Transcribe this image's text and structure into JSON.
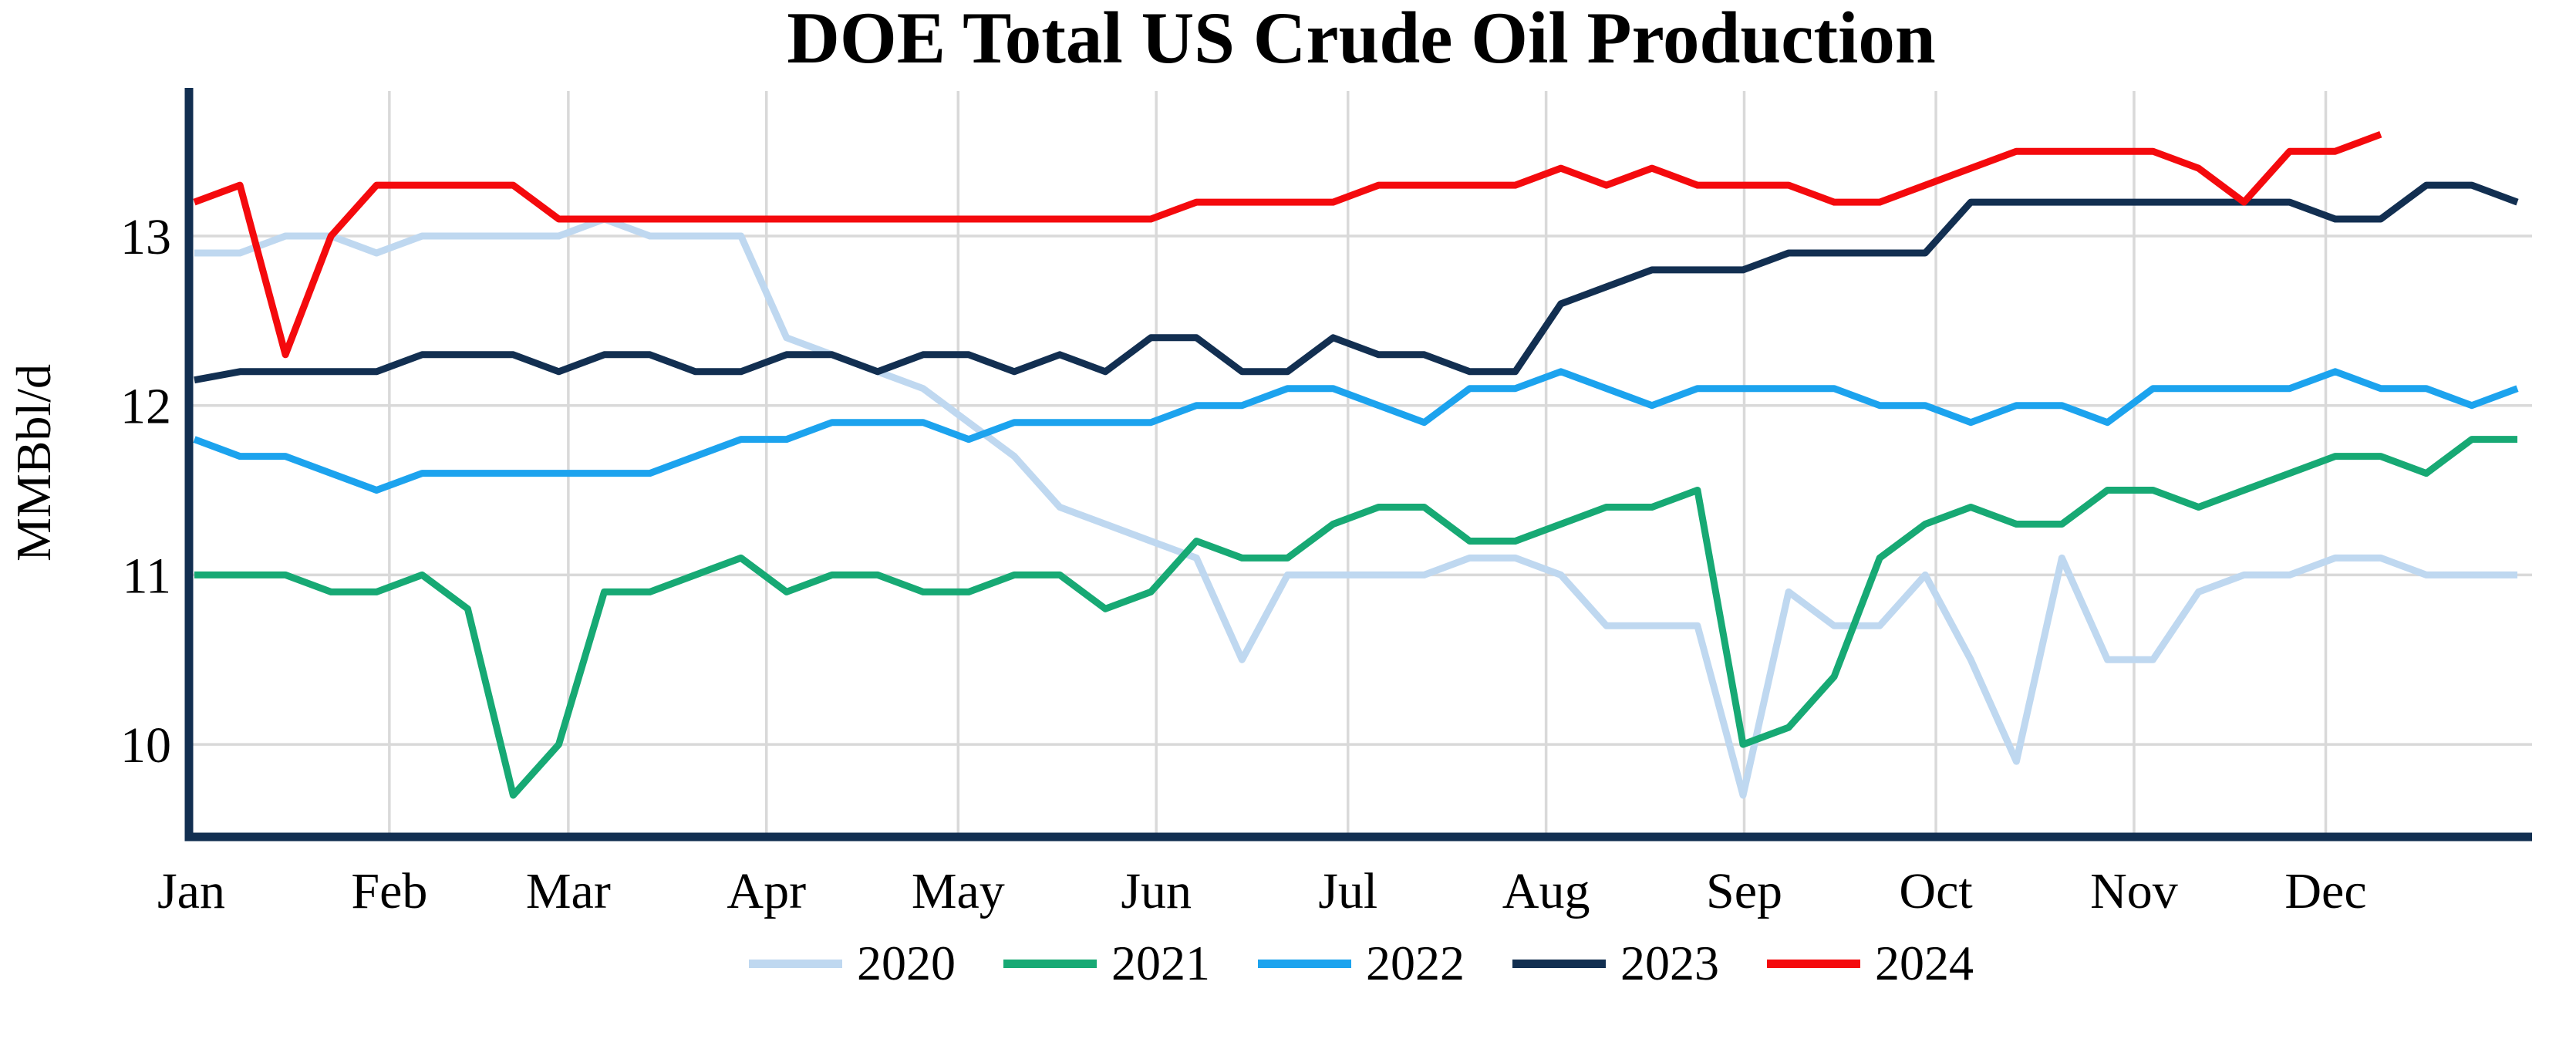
{
  "title": "DOE Total US Crude Oil Production",
  "colors": {
    "background": "#ffffff",
    "axis_spine": "#122f51",
    "gridline": "#d9d9d9",
    "text": "#000000"
  },
  "chart_data": {
    "type": "line",
    "title": "DOE Total US Crude Oil Production",
    "xlabel": "",
    "ylabel": "MMBbl/d",
    "x_unit": "weekly data, Jan through Dec",
    "x_tick_labels": [
      "Jan",
      "Feb",
      "Mar",
      "Apr",
      "May",
      "Jun",
      "Jul",
      "Aug",
      "Sep",
      "Oct",
      "Nov",
      "Dec"
    ],
    "month_start_days": [
      0,
      31,
      59,
      90,
      120,
      151,
      181,
      212,
      243,
      273,
      304,
      334
    ],
    "y_ticks": [
      10,
      11,
      12,
      13
    ],
    "ylim": [
      9.45,
      13.86
    ],
    "grid": true,
    "legend_position": "bottom",
    "series": [
      {
        "name": "2020",
        "color": "#bfd8f0",
        "values": [
          12.9,
          12.9,
          13.0,
          13.0,
          12.9,
          13.0,
          13.0,
          13.0,
          13.0,
          13.1,
          13.0,
          13.0,
          13.0,
          12.4,
          12.3,
          12.2,
          12.1,
          11.9,
          11.7,
          11.4,
          11.3,
          11.2,
          11.1,
          10.5,
          11.0,
          11.0,
          11.0,
          11.0,
          11.1,
          11.1,
          11.0,
          10.7,
          10.7,
          10.7,
          9.7,
          10.9,
          10.7,
          10.7,
          11.0,
          10.5,
          9.9,
          11.1,
          10.5,
          10.5,
          10.9,
          11.0,
          11.0,
          11.1,
          11.1,
          11.0,
          11.0,
          11.0
        ]
      },
      {
        "name": "2021",
        "color": "#17a974",
        "values": [
          11.0,
          11.0,
          11.0,
          10.9,
          10.9,
          11.0,
          10.8,
          9.7,
          10.0,
          10.9,
          10.9,
          11.0,
          11.1,
          10.9,
          11.0,
          11.0,
          10.9,
          10.9,
          11.0,
          11.0,
          10.8,
          10.9,
          11.2,
          11.1,
          11.1,
          11.3,
          11.4,
          11.4,
          11.2,
          11.2,
          11.3,
          11.4,
          11.4,
          11.5,
          10.0,
          10.1,
          10.4,
          11.1,
          11.3,
          11.4,
          11.3,
          11.3,
          11.5,
          11.5,
          11.4,
          11.5,
          11.6,
          11.7,
          11.7,
          11.6,
          11.8,
          11.8
        ]
      },
      {
        "name": "2022",
        "color": "#1ca3ee",
        "values": [
          11.8,
          11.7,
          11.7,
          11.6,
          11.5,
          11.6,
          11.6,
          11.6,
          11.6,
          11.6,
          11.6,
          11.7,
          11.8,
          11.8,
          11.9,
          11.9,
          11.9,
          11.8,
          11.9,
          11.9,
          11.9,
          11.9,
          12.0,
          12.0,
          12.1,
          12.1,
          12.0,
          11.9,
          12.1,
          12.1,
          12.2,
          12.1,
          12.0,
          12.1,
          12.1,
          12.1,
          12.1,
          12.0,
          12.0,
          11.9,
          12.0,
          12.0,
          11.9,
          12.1,
          12.1,
          12.1,
          12.1,
          12.2,
          12.1,
          12.1,
          12.0,
          12.1
        ]
      },
      {
        "name": "2023",
        "color": "#122f51",
        "values": [
          12.15,
          12.2,
          12.2,
          12.2,
          12.2,
          12.3,
          12.3,
          12.3,
          12.2,
          12.3,
          12.3,
          12.2,
          12.2,
          12.3,
          12.3,
          12.2,
          12.3,
          12.3,
          12.2,
          12.3,
          12.2,
          12.4,
          12.4,
          12.2,
          12.2,
          12.4,
          12.3,
          12.3,
          12.2,
          12.2,
          12.6,
          12.7,
          12.8,
          12.8,
          12.8,
          12.9,
          12.9,
          12.9,
          12.9,
          13.2,
          13.2,
          13.2,
          13.2,
          13.2,
          13.2,
          13.2,
          13.2,
          13.1,
          13.1,
          13.3,
          13.3,
          13.2
        ]
      },
      {
        "name": "2024",
        "color": "#f40a0d",
        "values": [
          13.2,
          13.3,
          12.3,
          13.0,
          13.3,
          13.3,
          13.3,
          13.3,
          13.1,
          13.1,
          13.1,
          13.1,
          13.1,
          13.1,
          13.1,
          13.1,
          13.1,
          13.1,
          13.1,
          13.1,
          13.1,
          13.1,
          13.2,
          13.2,
          13.2,
          13.2,
          13.3,
          13.3,
          13.3,
          13.3,
          13.4,
          13.3,
          13.4,
          13.3,
          13.3,
          13.3,
          13.2,
          13.2,
          13.3,
          13.4,
          13.5,
          13.5,
          13.5,
          13.5,
          13.4,
          13.2,
          13.5,
          13.5,
          13.6
        ]
      }
    ]
  }
}
